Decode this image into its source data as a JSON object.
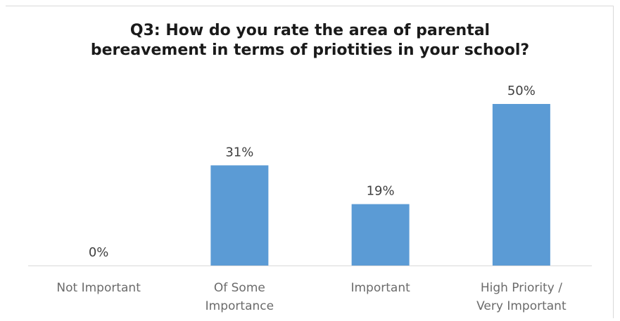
{
  "chart_data": {
    "type": "bar",
    "title_lines": [
      "Q3: How do you rate the area of parental",
      "bereavement in terms of priotities in your school?"
    ],
    "categories": [
      [
        "Not Important"
      ],
      [
        "Of Some",
        "Importance"
      ],
      [
        "Important"
      ],
      [
        "High Priority /",
        "Very Important"
      ]
    ],
    "values": [
      0,
      31,
      19,
      50
    ],
    "data_labels": [
      "0%",
      "31%",
      "19%",
      "50%"
    ],
    "unit": "%",
    "ylim": [
      0,
      60
    ],
    "grid": false,
    "legend": "none",
    "colors": {
      "bar": "#5b9bd5",
      "axis": "#d9d9d9",
      "frame": "#d9d9d9"
    }
  }
}
